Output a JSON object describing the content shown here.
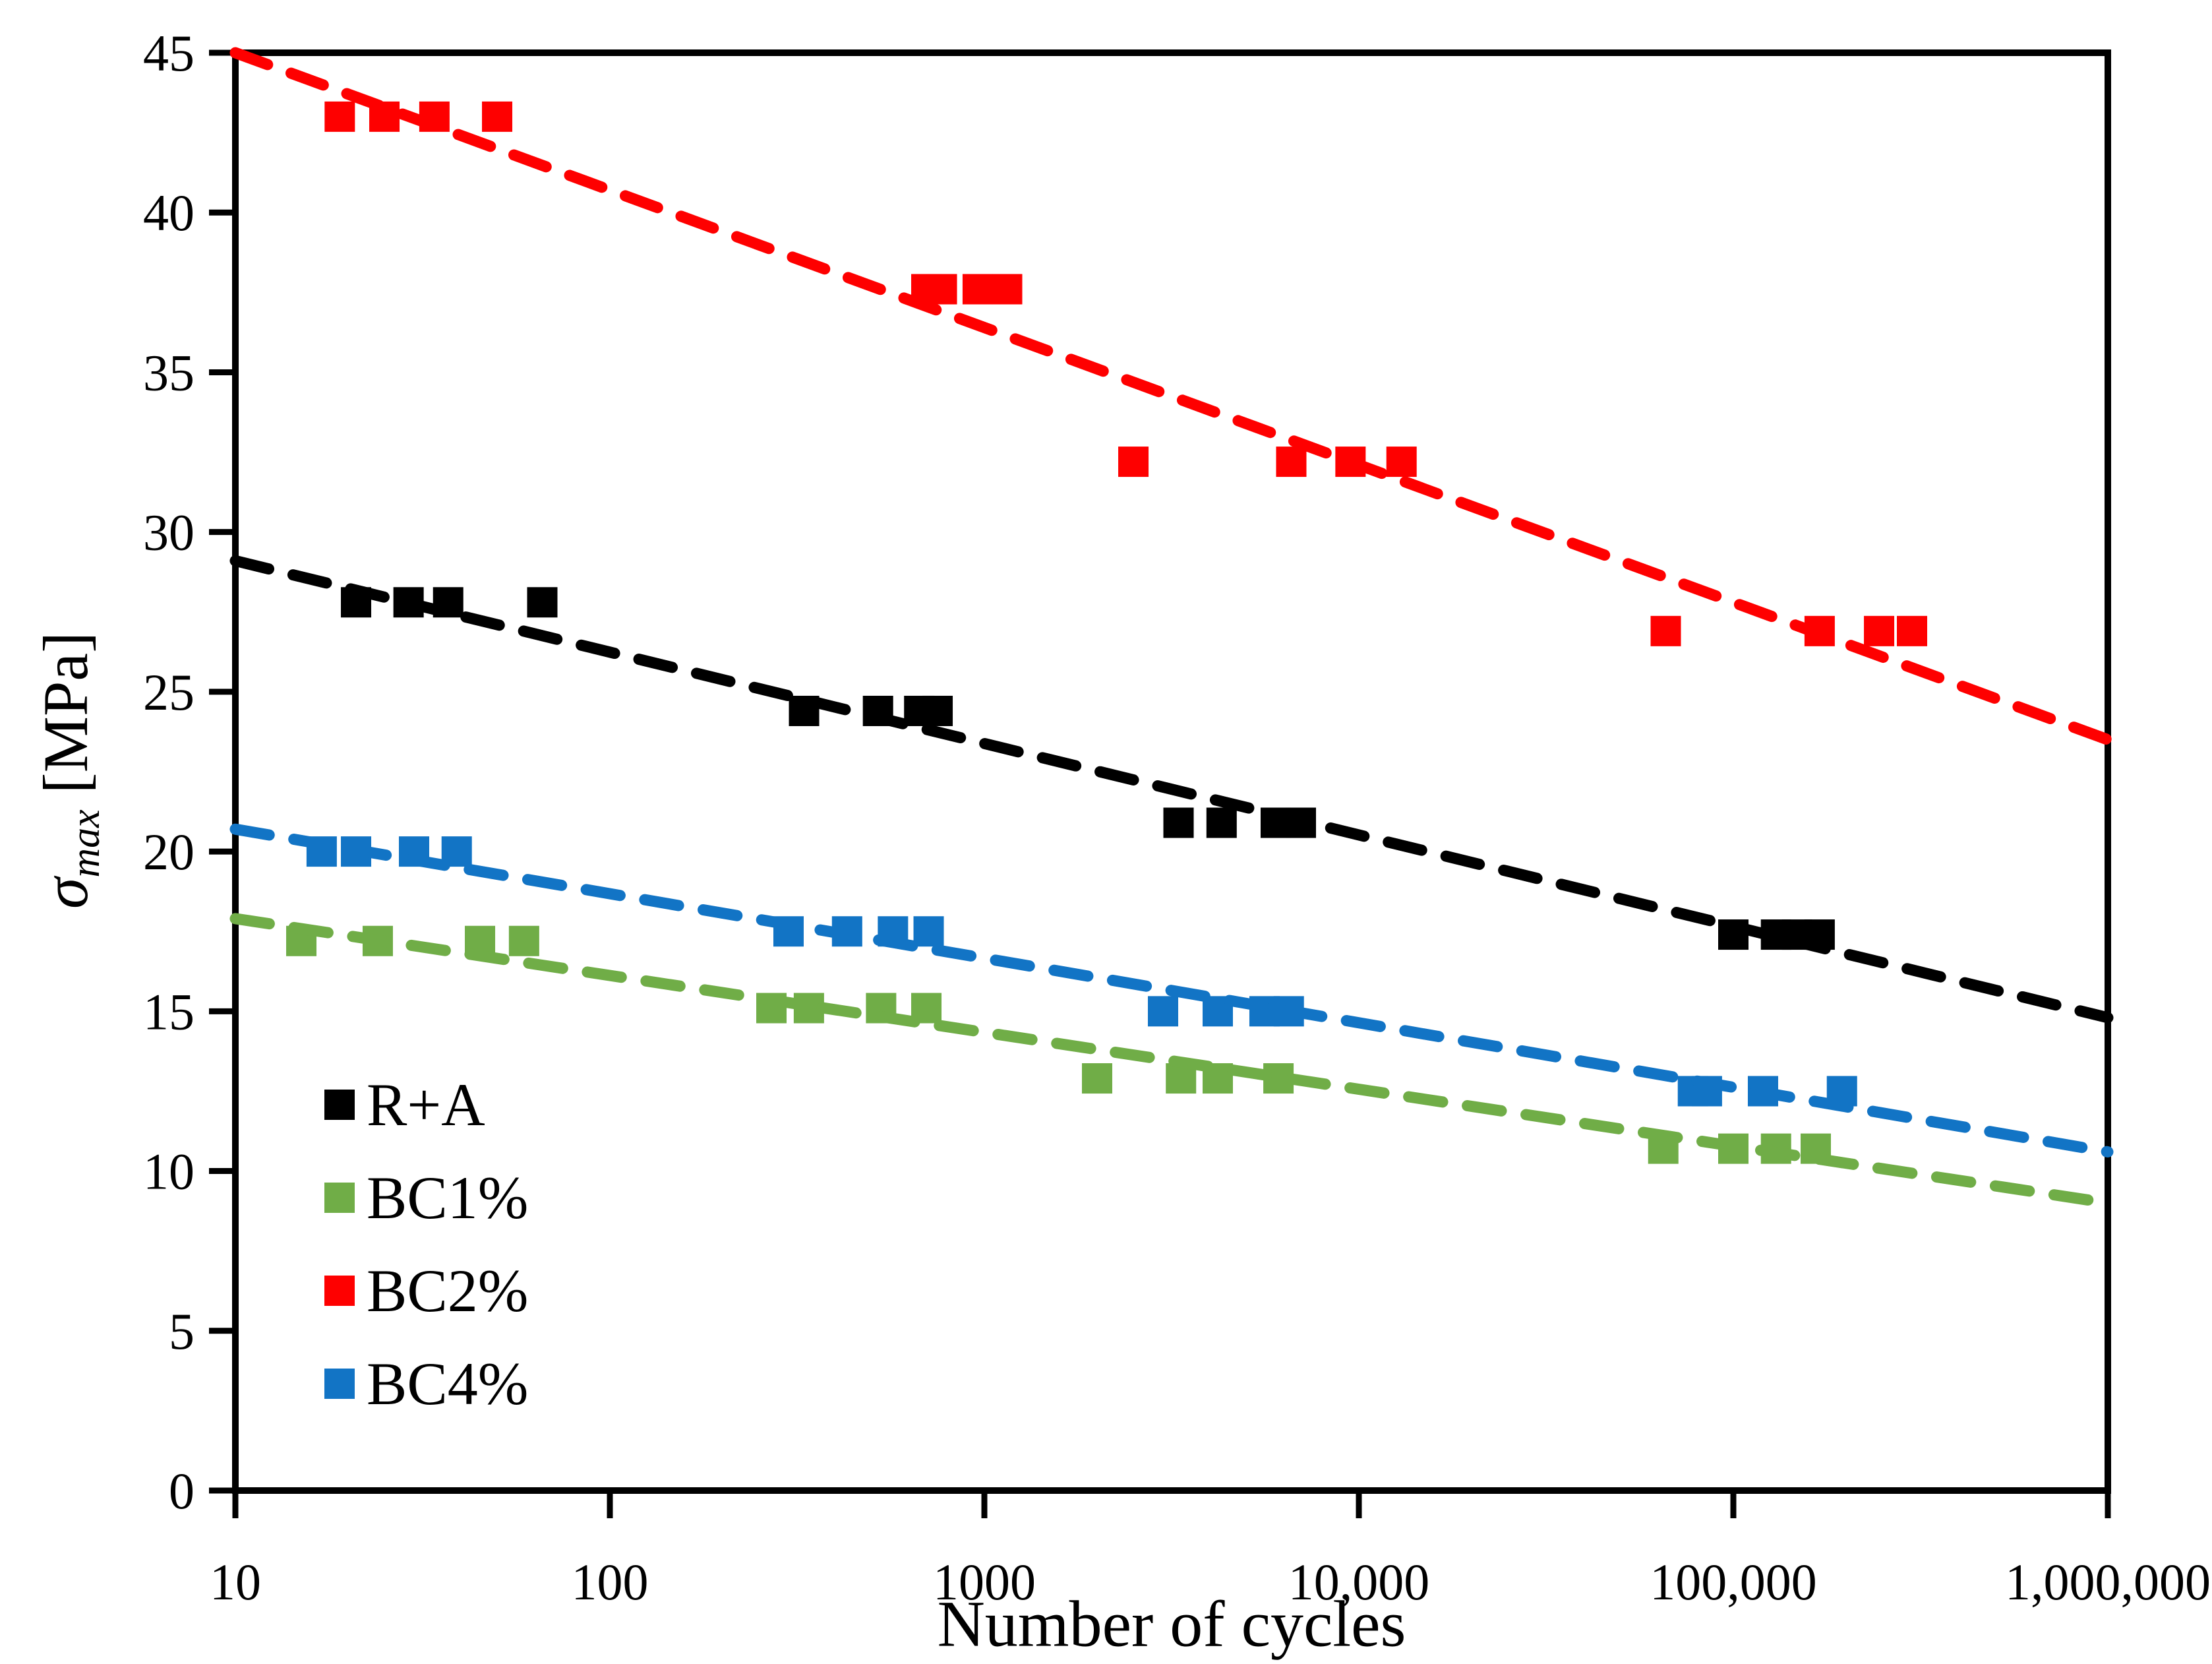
{
  "chart_data": {
    "type": "scatter",
    "title": "",
    "x_axis": {
      "label": "Number of cycles",
      "scale": "log",
      "range": [
        10,
        1000000
      ],
      "tick_values": [
        10,
        100,
        1000,
        10000,
        100000,
        1000000
      ],
      "tick_labels": [
        "10",
        "100",
        "1000",
        "10,000",
        "100,000",
        "1,000,000"
      ]
    },
    "y_axis": {
      "sigma": "σ",
      "sub": "max",
      "unit": " [MPa]",
      "scale": "linear",
      "range": [
        0,
        45
      ],
      "tick_values": [
        0,
        5,
        10,
        15,
        20,
        25,
        30,
        35,
        40,
        45
      ],
      "tick_labels": [
        "0",
        "5",
        "10",
        "15",
        "20",
        "25",
        "30",
        "35",
        "40",
        "45"
      ]
    },
    "grid": false,
    "legend_position": "lower-left",
    "series": [
      {
        "name": "R+A",
        "color": "#000000",
        "marker": "square",
        "stress_levels_mpa": [
          27.8,
          24.4,
          20.9,
          17.4
        ],
        "trendline": {
          "style": "dashed",
          "value_at_10": 29.1,
          "value_at_1000000": 14.8
        },
        "points": [
          {
            "n": 21,
            "s": 27.8
          },
          {
            "n": 29,
            "s": 27.8
          },
          {
            "n": 37,
            "s": 27.8
          },
          {
            "n": 66,
            "s": 27.8
          },
          {
            "n": 330,
            "s": 24.4
          },
          {
            "n": 520,
            "s": 24.4
          },
          {
            "n": 670,
            "s": 24.4
          },
          {
            "n": 750,
            "s": 24.4
          },
          {
            "n": 3300,
            "s": 20.9
          },
          {
            "n": 4300,
            "s": 20.9
          },
          {
            "n": 6000,
            "s": 20.9
          },
          {
            "n": 7000,
            "s": 20.9
          },
          {
            "n": 100000,
            "s": 17.4
          },
          {
            "n": 130000,
            "s": 17.4
          },
          {
            "n": 148000,
            "s": 17.4
          },
          {
            "n": 170000,
            "s": 17.4
          }
        ]
      },
      {
        "name": "BC1%",
        "color": "#70AD47",
        "marker": "square",
        "stress_levels_mpa": [
          17.2,
          15.1,
          12.9,
          10.7
        ],
        "trendline": {
          "style": "dashed",
          "value_at_10": 17.9,
          "value_at_1000000": 9.0
        },
        "points": [
          {
            "n": 15,
            "s": 17.2
          },
          {
            "n": 24,
            "s": 17.2
          },
          {
            "n": 45,
            "s": 17.2
          },
          {
            "n": 59,
            "s": 17.2
          },
          {
            "n": 270,
            "s": 15.1
          },
          {
            "n": 340,
            "s": 15.1
          },
          {
            "n": 530,
            "s": 15.1
          },
          {
            "n": 700,
            "s": 15.1
          },
          {
            "n": 2000,
            "s": 12.9
          },
          {
            "n": 3350,
            "s": 12.9
          },
          {
            "n": 4200,
            "s": 12.9
          },
          {
            "n": 6100,
            "s": 12.9
          },
          {
            "n": 65000,
            "s": 10.7
          },
          {
            "n": 100000,
            "s": 10.7
          },
          {
            "n": 130000,
            "s": 10.7
          },
          {
            "n": 166000,
            "s": 10.7
          }
        ]
      },
      {
        "name": "BC2%",
        "color": "#FE0000",
        "marker": "square",
        "stress_levels_mpa": [
          43.0,
          37.6,
          32.2,
          26.9
        ],
        "trendline": {
          "style": "dashed",
          "value_at_10": 45.0,
          "value_at_1000000": 23.5
        },
        "points": [
          {
            "n": 19,
            "s": 43.0
          },
          {
            "n": 25,
            "s": 43.0
          },
          {
            "n": 34,
            "s": 43.0
          },
          {
            "n": 50,
            "s": 43.0
          },
          {
            "n": 700,
            "s": 37.6
          },
          {
            "n": 770,
            "s": 37.6
          },
          {
            "n": 960,
            "s": 37.6
          },
          {
            "n": 1150,
            "s": 37.6
          },
          {
            "n": 2500,
            "s": 32.2
          },
          {
            "n": 6600,
            "s": 32.2
          },
          {
            "n": 9500,
            "s": 32.2
          },
          {
            "n": 13000,
            "s": 32.2
          },
          {
            "n": 66000,
            "s": 26.9
          },
          {
            "n": 170000,
            "s": 26.9
          },
          {
            "n": 245000,
            "s": 26.9
          },
          {
            "n": 300000,
            "s": 26.9
          }
        ]
      },
      {
        "name": "BC4%",
        "color": "#1274C5",
        "marker": "square",
        "stress_levels_mpa": [
          20.0,
          17.5,
          15.0,
          12.5
        ],
        "trendline": {
          "style": "dashed",
          "value_at_10": 20.7,
          "value_at_1000000": 10.6
        },
        "points": [
          {
            "n": 17,
            "s": 20.0
          },
          {
            "n": 21,
            "s": 20.0
          },
          {
            "n": 30,
            "s": 20.0
          },
          {
            "n": 39,
            "s": 20.0
          },
          {
            "n": 300,
            "s": 17.5
          },
          {
            "n": 430,
            "s": 17.5
          },
          {
            "n": 570,
            "s": 17.5
          },
          {
            "n": 710,
            "s": 17.5
          },
          {
            "n": 3000,
            "s": 15.0
          },
          {
            "n": 4200,
            "s": 15.0
          },
          {
            "n": 5600,
            "s": 15.0
          },
          {
            "n": 6500,
            "s": 15.0
          },
          {
            "n": 78000,
            "s": 12.5
          },
          {
            "n": 85000,
            "s": 12.5
          },
          {
            "n": 120000,
            "s": 12.5
          },
          {
            "n": 195000,
            "s": 12.5
          }
        ]
      }
    ]
  }
}
